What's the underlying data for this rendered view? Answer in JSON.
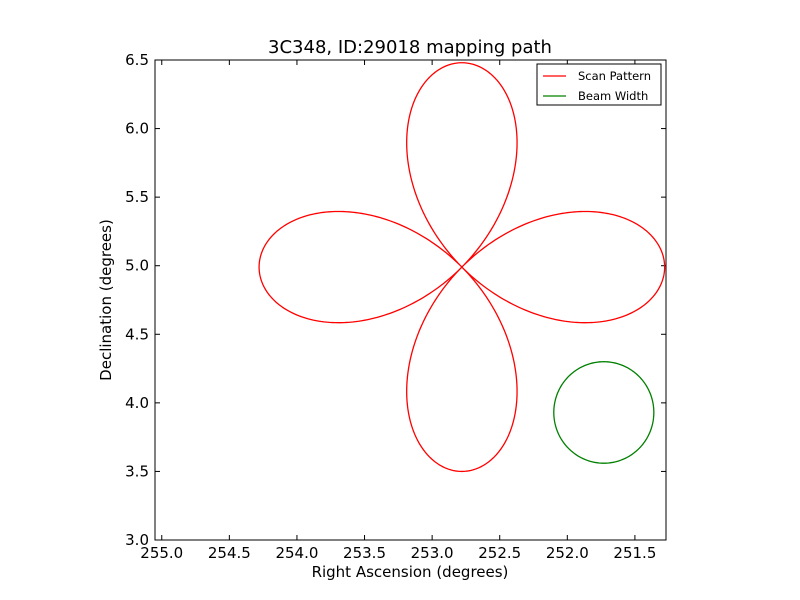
{
  "chart_data": {
    "type": "line",
    "title": "3C348, ID:29018 mapping path",
    "xlabel": "Right Ascension (degrees)",
    "ylabel": "Declination (degrees)",
    "xlim": [
      255.05,
      251.27
    ],
    "ylim": [
      3.0,
      6.5
    ],
    "x_ticks": [
      "255.0",
      "254.5",
      "254.0",
      "253.5",
      "253.0",
      "252.5",
      "252.0",
      "251.5"
    ],
    "y_ticks": [
      "3.0",
      "3.5",
      "4.0",
      "4.5",
      "5.0",
      "5.5",
      "6.0",
      "6.5"
    ],
    "grid": false,
    "legend_position": "upper right",
    "series": [
      {
        "name": "Scan Pattern",
        "color": "#ff0000",
        "kind": "four-petal rose curve",
        "center": [
          252.78,
          4.99
        ],
        "petal_tips": [
          [
            252.78,
            6.48
          ],
          [
            252.78,
            3.49
          ],
          [
            254.28,
            4.99
          ],
          [
            251.27,
            4.99
          ]
        ]
      },
      {
        "name": "Beam Width",
        "color": "#008000",
        "kind": "circle",
        "center": [
          251.73,
          3.93
        ],
        "radius_deg": 0.37
      }
    ]
  }
}
